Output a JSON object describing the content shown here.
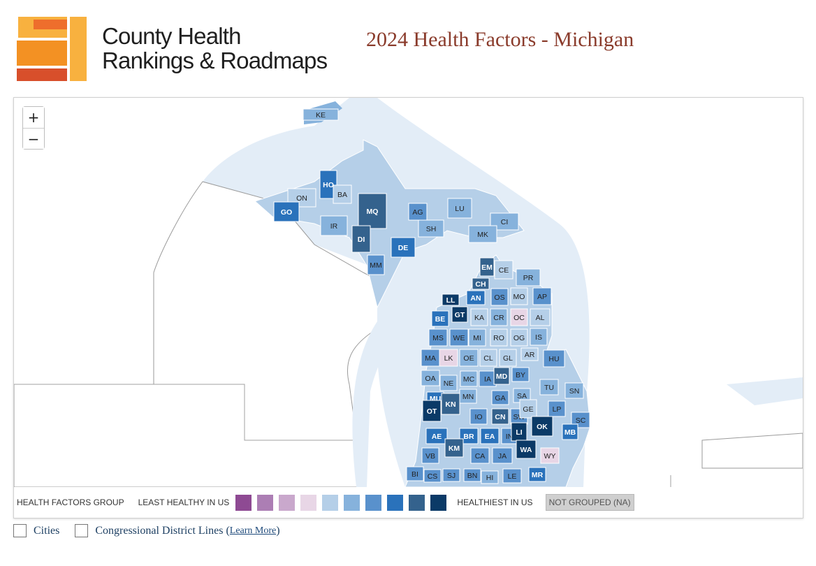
{
  "brand": {
    "line1": "County Health",
    "line2": "Rankings & Roadmaps"
  },
  "title": "2024 Health Factors - Michigan",
  "zoom": {
    "in": "+",
    "out": "−"
  },
  "legend": {
    "group_label": "HEALTH FACTORS GROUP",
    "least_label": "LEAST HEALTHY IN US",
    "healthiest_label": "HEALTHIEST IN US",
    "na_label": "NOT GROUPED (NA)",
    "colors": [
      "#8e4a93",
      "#ac7eb4",
      "#c9a8cc",
      "#e8d6e6",
      "#b5cfe8",
      "#86b2dc",
      "#5991cc",
      "#2a72bb",
      "#34628d",
      "#0b3a67"
    ]
  },
  "options": {
    "cities": "Cities",
    "districts": "Congressional District Lines",
    "learn_more": "Learn More",
    "paren_open": "(",
    "paren_close": ")"
  },
  "counties": [
    {
      "code": "KE",
      "level": 5
    },
    {
      "code": "HO",
      "level": 7
    },
    {
      "code": "BA",
      "level": 4
    },
    {
      "code": "ON",
      "level": 4
    },
    {
      "code": "GO",
      "level": 7
    },
    {
      "code": "MQ",
      "level": 8
    },
    {
      "code": "IR",
      "level": 5
    },
    {
      "code": "DI",
      "level": 8
    },
    {
      "code": "AG",
      "level": 6
    },
    {
      "code": "LU",
      "level": 5
    },
    {
      "code": "SH",
      "level": 5
    },
    {
      "code": "CI",
      "level": 5
    },
    {
      "code": "MK",
      "level": 5
    },
    {
      "code": "DE",
      "level": 7
    },
    {
      "code": "MM",
      "level": 6
    },
    {
      "code": "EM",
      "level": 8
    },
    {
      "code": "CE",
      "level": 4
    },
    {
      "code": "CH",
      "level": 8
    },
    {
      "code": "PR",
      "level": 5
    },
    {
      "code": "LL",
      "level": 9
    },
    {
      "code": "AN",
      "level": 7
    },
    {
      "code": "OS",
      "level": 6
    },
    {
      "code": "MO",
      "level": 4
    },
    {
      "code": "AP",
      "level": 6
    },
    {
      "code": "BE",
      "level": 7
    },
    {
      "code": "GT",
      "level": 9
    },
    {
      "code": "KA",
      "level": 4
    },
    {
      "code": "CR",
      "level": 5
    },
    {
      "code": "OC",
      "level": 3
    },
    {
      "code": "AL",
      "level": 4
    },
    {
      "code": "MS",
      "level": 6
    },
    {
      "code": "WE",
      "level": 6
    },
    {
      "code": "MI",
      "level": 5
    },
    {
      "code": "RO",
      "level": 4
    },
    {
      "code": "OG",
      "level": 4
    },
    {
      "code": "IS",
      "level": 5
    },
    {
      "code": "MA",
      "level": 6
    },
    {
      "code": "LK",
      "level": 3
    },
    {
      "code": "OE",
      "level": 5
    },
    {
      "code": "CL",
      "level": 4
    },
    {
      "code": "GL",
      "level": 4
    },
    {
      "code": "AR",
      "level": 4
    },
    {
      "code": "BY",
      "level": 6
    },
    {
      "code": "HU",
      "level": 6
    },
    {
      "code": "OA",
      "level": 5
    },
    {
      "code": "NE",
      "level": 5
    },
    {
      "code": "MC",
      "level": 5
    },
    {
      "code": "IA",
      "level": 6
    },
    {
      "code": "MD",
      "level": 8
    },
    {
      "code": "MU",
      "level": 7
    },
    {
      "code": "MN",
      "level": 5
    },
    {
      "code": "GA",
      "level": 6
    },
    {
      "code": "SA",
      "level": 5
    },
    {
      "code": "TU",
      "level": 5
    },
    {
      "code": "SN",
      "level": 5
    },
    {
      "code": "OT",
      "level": 9
    },
    {
      "code": "KN",
      "level": 8
    },
    {
      "code": "IO",
      "level": 6
    },
    {
      "code": "CN",
      "level": 8
    },
    {
      "code": "SW",
      "level": 6
    },
    {
      "code": "GE",
      "level": 4
    },
    {
      "code": "LP",
      "level": 6
    },
    {
      "code": "SC",
      "level": 6
    },
    {
      "code": "AE",
      "level": 7
    },
    {
      "code": "BR",
      "level": 7
    },
    {
      "code": "EA",
      "level": 7
    },
    {
      "code": "IN",
      "level": 6
    },
    {
      "code": "LI",
      "level": 9
    },
    {
      "code": "OK",
      "level": 9
    },
    {
      "code": "MB",
      "level": 7
    },
    {
      "code": "VB",
      "level": 6
    },
    {
      "code": "KM",
      "level": 8
    },
    {
      "code": "CA",
      "level": 6
    },
    {
      "code": "JA",
      "level": 6
    },
    {
      "code": "WA",
      "level": 9
    },
    {
      "code": "WY",
      "level": 3
    },
    {
      "code": "BI",
      "level": 6
    },
    {
      "code": "CS",
      "level": 6
    },
    {
      "code": "SJ",
      "level": 6
    },
    {
      "code": "BN",
      "level": 6
    },
    {
      "code": "HI",
      "level": 5
    },
    {
      "code": "LE",
      "level": 6
    },
    {
      "code": "MR",
      "level": 7
    }
  ]
}
